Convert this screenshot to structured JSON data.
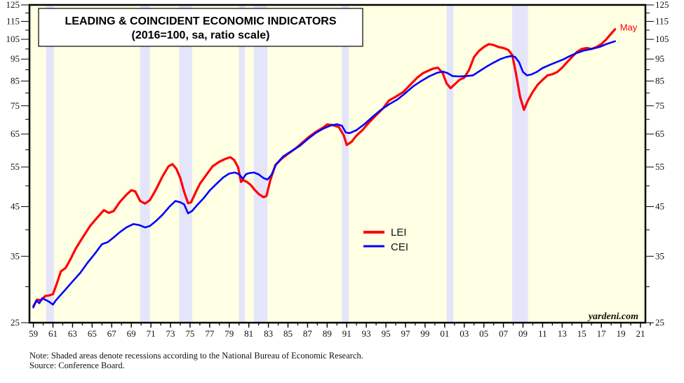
{
  "chart_data": {
    "type": "line",
    "title": "LEADING & COINCIDENT ECONOMIC INDICATORS",
    "subtitle": "(2016=100, sa, ratio scale)",
    "xlabel": "",
    "ylabel": "",
    "yscale": "log",
    "ylim": [
      25,
      125
    ],
    "xlim": [
      1958.6,
      2021.5
    ],
    "yticks": [
      25,
      35,
      45,
      55,
      65,
      75,
      85,
      95,
      105,
      115,
      125
    ],
    "yminor": [
      30,
      40,
      50,
      60,
      70,
      80,
      90,
      100,
      110,
      120
    ],
    "xtick_labels": [
      "59",
      "61",
      "63",
      "65",
      "67",
      "69",
      "71",
      "73",
      "75",
      "77",
      "79",
      "81",
      "83",
      "85",
      "87",
      "89",
      "91",
      "93",
      "95",
      "97",
      "99",
      "01",
      "03",
      "05",
      "07",
      "09",
      "11",
      "13",
      "15",
      "17",
      "19",
      "21"
    ],
    "xtick_years": [
      1959,
      1961,
      1963,
      1965,
      1967,
      1969,
      1971,
      1973,
      1975,
      1977,
      1979,
      1981,
      1983,
      1985,
      1987,
      1989,
      1991,
      1993,
      1995,
      1997,
      1999,
      2001,
      2003,
      2005,
      2007,
      2009,
      2011,
      2013,
      2015,
      2017,
      2019,
      2021
    ],
    "recessions": [
      [
        1960.3,
        1961.1
      ],
      [
        1969.9,
        1970.9
      ],
      [
        1973.9,
        1975.2
      ],
      [
        1980.0,
        1980.6
      ],
      [
        1981.5,
        1982.9
      ],
      [
        1990.5,
        1991.2
      ],
      [
        2001.2,
        2001.9
      ],
      [
        2007.9,
        2009.5
      ]
    ],
    "legend": {
      "placement": "center",
      "entries": [
        "LEI",
        "CEI"
      ]
    },
    "series": [
      {
        "name": "LEI",
        "color": "#ff0000",
        "x": [
          1959.0,
          1959.4,
          1959.8,
          1960.2,
          1960.6,
          1961.0,
          1961.4,
          1961.8,
          1962.3,
          1962.8,
          1963.3,
          1964.0,
          1964.8,
          1965.5,
          1966.2,
          1966.7,
          1967.2,
          1967.8,
          1968.5,
          1969.0,
          1969.4,
          1969.9,
          1970.4,
          1970.9,
          1971.5,
          1972.2,
          1972.8,
          1973.2,
          1973.6,
          1974.0,
          1974.4,
          1974.8,
          1975.1,
          1975.5,
          1976.0,
          1976.7,
          1977.3,
          1978.0,
          1978.6,
          1979.1,
          1979.5,
          1979.9,
          1980.2,
          1980.4,
          1980.8,
          1981.2,
          1981.6,
          1982.0,
          1982.5,
          1982.8,
          1983.2,
          1983.7,
          1984.3,
          1985.0,
          1985.8,
          1986.5,
          1987.2,
          1987.9,
          1988.6,
          1989.0,
          1989.6,
          1990.2,
          1990.7,
          1991.0,
          1991.5,
          1992.0,
          1992.6,
          1993.3,
          1994.0,
          1994.7,
          1995.3,
          1996.0,
          1996.8,
          1997.5,
          1998.2,
          1998.8,
          1999.3,
          1999.8,
          2000.3,
          2000.8,
          2001.2,
          2001.6,
          2002.0,
          2002.5,
          2003.0,
          2003.5,
          2004.0,
          2004.5,
          2005.0,
          2005.5,
          2006.0,
          2006.5,
          2007.0,
          2007.5,
          2007.9,
          2008.3,
          2008.7,
          2009.1,
          2009.5,
          2010.0,
          2010.5,
          2011.0,
          2011.5,
          2012.0,
          2012.5,
          2013.0,
          2013.5,
          2014.0,
          2014.5,
          2015.0,
          2015.5,
          2016.0,
          2016.5,
          2017.0,
          2017.5,
          2018.0,
          2018.4
        ],
        "values": [
          27.2,
          28.1,
          28.0,
          28.6,
          28.7,
          28.9,
          30.5,
          32.4,
          33.0,
          34.5,
          36.3,
          38.4,
          40.8,
          42.5,
          44.2,
          43.6,
          44.0,
          46.0,
          47.8,
          48.9,
          48.6,
          46.3,
          45.7,
          46.5,
          49.0,
          52.5,
          55.2,
          55.8,
          54.5,
          52.0,
          48.5,
          45.8,
          46.0,
          48.0,
          50.5,
          53.0,
          55.2,
          56.5,
          57.3,
          57.8,
          57.0,
          55.0,
          51.0,
          51.5,
          51.0,
          50.2,
          49.0,
          48.0,
          47.2,
          47.5,
          51.5,
          55.5,
          57.2,
          58.8,
          60.5,
          62.3,
          64.2,
          65.8,
          67.2,
          68.2,
          68.0,
          67.3,
          64.5,
          61.5,
          62.5,
          64.5,
          66.3,
          69.0,
          71.5,
          74.0,
          77.0,
          78.5,
          80.5,
          83.5,
          86.5,
          88.5,
          89.5,
          90.5,
          91.0,
          88.5,
          84.0,
          82.0,
          83.5,
          85.5,
          86.5,
          90.0,
          96.0,
          99.0,
          101.0,
          102.5,
          102.0,
          101.0,
          100.5,
          99.5,
          97.0,
          88.0,
          78.5,
          73.5,
          77.0,
          80.5,
          83.5,
          85.5,
          87.5,
          88.0,
          89.0,
          91.0,
          93.5,
          96.0,
          98.5,
          100.0,
          100.5,
          100.0,
          101.0,
          102.5,
          105.0,
          108.0,
          110.5
        ]
      },
      {
        "name": "CEI",
        "color": "#0000ff",
        "x": [
          1959.0,
          1959.3,
          1959.6,
          1959.9,
          1960.2,
          1960.6,
          1961.0,
          1961.3,
          1961.8,
          1962.3,
          1963.0,
          1963.8,
          1964.5,
          1965.3,
          1966.0,
          1966.6,
          1967.2,
          1967.8,
          1968.5,
          1969.2,
          1969.8,
          1970.4,
          1970.9,
          1971.5,
          1972.2,
          1972.9,
          1973.5,
          1974.0,
          1974.4,
          1974.8,
          1975.2,
          1975.7,
          1976.4,
          1977.0,
          1977.7,
          1978.4,
          1979.0,
          1979.6,
          1980.0,
          1980.4,
          1980.7,
          1981.0,
          1981.5,
          1982.0,
          1982.5,
          1982.9,
          1983.3,
          1983.8,
          1984.5,
          1985.3,
          1986.2,
          1987.0,
          1987.8,
          1988.6,
          1989.3,
          1990.0,
          1990.5,
          1990.9,
          1991.3,
          1992.0,
          1992.8,
          1993.6,
          1994.5,
          1995.3,
          1996.2,
          1997.0,
          1997.8,
          1998.6,
          1999.4,
          2000.2,
          2000.8,
          2001.3,
          2001.8,
          2002.5,
          2003.2,
          2003.9,
          2004.6,
          2005.3,
          2006.0,
          2006.7,
          2007.3,
          2007.8,
          2008.2,
          2008.6,
          2009.0,
          2009.4,
          2009.8,
          2010.4,
          2011.0,
          2011.7,
          2012.4,
          2013.1,
          2013.8,
          2014.5,
          2015.2,
          2016.0,
          2016.8,
          2017.5,
          2018.4
        ],
        "values": [
          27.0,
          28.0,
          27.6,
          28.3,
          28.1,
          27.8,
          27.4,
          28.0,
          28.8,
          29.6,
          30.8,
          32.2,
          33.8,
          35.5,
          37.2,
          37.6,
          38.5,
          39.5,
          40.5,
          41.2,
          41.0,
          40.5,
          40.8,
          41.8,
          43.2,
          45.0,
          46.3,
          46.0,
          45.5,
          43.5,
          44.0,
          45.3,
          47.0,
          48.8,
          50.5,
          52.2,
          53.2,
          53.5,
          53.0,
          51.8,
          53.0,
          53.3,
          53.5,
          53.0,
          52.0,
          51.6,
          52.8,
          55.8,
          58.0,
          59.5,
          61.2,
          63.3,
          65.3,
          66.8,
          67.8,
          68.3,
          67.8,
          65.5,
          65.3,
          66.3,
          68.3,
          70.8,
          73.5,
          75.5,
          77.5,
          80.0,
          82.8,
          85.0,
          87.0,
          88.6,
          89.2,
          88.5,
          87.2,
          87.0,
          87.2,
          87.5,
          89.5,
          91.5,
          93.3,
          95.0,
          96.0,
          96.5,
          96.0,
          93.5,
          89.0,
          87.5,
          87.8,
          89.0,
          90.8,
          92.2,
          93.5,
          94.8,
          96.5,
          98.0,
          99.2,
          100.0,
          101.0,
          102.5,
          104.0
        ]
      }
    ],
    "annotations": [
      {
        "text": "May",
        "series": "LEI",
        "color": "#ff0000"
      }
    ]
  },
  "colors": {
    "plot_background": "#ffffe3",
    "recession_shade": "#e4e4fb",
    "axis": "#000000"
  },
  "branding": "yardeni.com",
  "notes": {
    "line1": "Note: Shaded areas denote recessions according to the National Bureau of Economic Research.",
    "line2": "Source: Conference Board."
  }
}
